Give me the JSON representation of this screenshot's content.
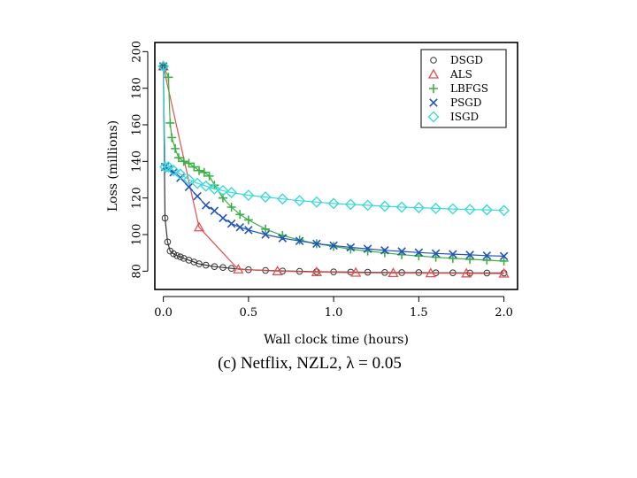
{
  "chart_data": {
    "type": "line",
    "caption": "(c) Netflix, NZL2, λ = 0.05",
    "xlabel": "Wall clock time (hours)",
    "ylabel": "Loss (millions)",
    "xlim": [
      -0.05,
      2.08
    ],
    "ylim": [
      70,
      205
    ],
    "xticks": [
      0.0,
      0.5,
      1.0,
      1.5,
      2.0
    ],
    "xtick_labels": [
      "0.0",
      "0.5",
      "1.0",
      "1.5",
      "2.0"
    ],
    "yticks": [
      80,
      100,
      120,
      140,
      160,
      180,
      200
    ],
    "ytick_labels": [
      "80",
      "100",
      "120",
      "140",
      "160",
      "180",
      "200"
    ],
    "legend_position": "top-right",
    "series": [
      {
        "name": "DSGD",
        "color": "#333333",
        "marker": "circle",
        "points": [
          [
            0.0,
            192
          ],
          [
            0.01,
            109
          ],
          [
            0.025,
            96
          ],
          [
            0.04,
            91
          ],
          [
            0.06,
            89.5
          ],
          [
            0.08,
            88.5
          ],
          [
            0.1,
            87.8
          ],
          [
            0.12,
            87
          ],
          [
            0.15,
            86
          ],
          [
            0.18,
            85
          ],
          [
            0.21,
            84
          ],
          [
            0.25,
            83.3
          ],
          [
            0.3,
            82.5
          ],
          [
            0.35,
            82
          ],
          [
            0.4,
            81.5
          ],
          [
            0.5,
            80.8
          ],
          [
            0.6,
            80.4
          ],
          [
            0.7,
            80.1
          ],
          [
            0.8,
            79.9
          ],
          [
            0.9,
            79.7
          ],
          [
            1.0,
            79.6
          ],
          [
            1.1,
            79.5
          ],
          [
            1.2,
            79.4
          ],
          [
            1.3,
            79.3
          ],
          [
            1.4,
            79.2
          ],
          [
            1.5,
            79.2
          ],
          [
            1.6,
            79.1
          ],
          [
            1.7,
            79.1
          ],
          [
            1.8,
            79.0
          ],
          [
            1.9,
            79.0
          ],
          [
            2.0,
            79.0
          ]
        ]
      },
      {
        "name": "ALS",
        "color": "#e05050",
        "marker": "triangle",
        "points": [
          [
            0.0,
            192
          ],
          [
            0.21,
            104
          ],
          [
            0.44,
            81
          ],
          [
            0.67,
            80
          ],
          [
            0.9,
            79.5
          ],
          [
            1.13,
            79.2
          ],
          [
            1.35,
            79
          ],
          [
            1.57,
            78.9
          ],
          [
            1.78,
            78.8
          ],
          [
            2.0,
            78.7
          ]
        ]
      },
      {
        "name": "LBFGS",
        "color": "#3cb044",
        "marker": "plus",
        "points": [
          [
            0.0,
            192
          ],
          [
            0.03,
            186
          ],
          [
            0.04,
            161
          ],
          [
            0.05,
            153
          ],
          [
            0.07,
            147
          ],
          [
            0.09,
            142
          ],
          [
            0.12,
            140
          ],
          [
            0.15,
            139
          ],
          [
            0.18,
            137
          ],
          [
            0.21,
            135
          ],
          [
            0.24,
            134
          ],
          [
            0.27,
            132
          ],
          [
            0.3,
            127
          ],
          [
            0.35,
            120
          ],
          [
            0.4,
            115
          ],
          [
            0.45,
            111
          ],
          [
            0.5,
            108
          ],
          [
            0.6,
            103
          ],
          [
            0.7,
            99.5
          ],
          [
            0.8,
            97
          ],
          [
            0.9,
            95
          ],
          [
            1.0,
            93.5
          ],
          [
            1.1,
            92
          ],
          [
            1.2,
            91
          ],
          [
            1.3,
            90
          ],
          [
            1.4,
            89
          ],
          [
            1.5,
            88.3
          ],
          [
            1.6,
            87.6
          ],
          [
            1.7,
            87
          ],
          [
            1.8,
            86.5
          ],
          [
            1.9,
            86
          ],
          [
            2.0,
            85.5
          ]
        ]
      },
      {
        "name": "PSGD",
        "color": "#2255bb",
        "marker": "x",
        "points": [
          [
            0.0,
            192
          ],
          [
            0.01,
            137
          ],
          [
            0.03,
            136
          ],
          [
            0.06,
            134
          ],
          [
            0.1,
            131
          ],
          [
            0.15,
            126
          ],
          [
            0.2,
            121
          ],
          [
            0.25,
            116
          ],
          [
            0.3,
            113
          ],
          [
            0.35,
            109
          ],
          [
            0.4,
            106
          ],
          [
            0.45,
            104
          ],
          [
            0.5,
            102.5
          ],
          [
            0.6,
            100
          ],
          [
            0.7,
            98
          ],
          [
            0.8,
            96.5
          ],
          [
            0.9,
            95
          ],
          [
            1.0,
            94
          ],
          [
            1.1,
            93
          ],
          [
            1.2,
            92.2
          ],
          [
            1.3,
            91.4
          ],
          [
            1.4,
            90.8
          ],
          [
            1.5,
            90.2
          ],
          [
            1.6,
            89.7
          ],
          [
            1.7,
            89.3
          ],
          [
            1.8,
            88.9
          ],
          [
            1.9,
            88.5
          ],
          [
            2.0,
            88.2
          ]
        ]
      },
      {
        "name": "ISGD",
        "color": "#3dd9d9",
        "marker": "diamond",
        "points": [
          [
            0.0,
            192
          ],
          [
            0.01,
            137
          ],
          [
            0.03,
            137
          ],
          [
            0.06,
            135
          ],
          [
            0.1,
            133
          ],
          [
            0.15,
            130
          ],
          [
            0.2,
            128
          ],
          [
            0.25,
            126.5
          ],
          [
            0.3,
            125
          ],
          [
            0.35,
            124
          ],
          [
            0.4,
            123
          ],
          [
            0.5,
            121.5
          ],
          [
            0.6,
            120.5
          ],
          [
            0.7,
            119.5
          ],
          [
            0.8,
            118.5
          ],
          [
            0.9,
            117.8
          ],
          [
            1.0,
            117
          ],
          [
            1.1,
            116.5
          ],
          [
            1.2,
            116
          ],
          [
            1.3,
            115.5
          ],
          [
            1.4,
            115
          ],
          [
            1.5,
            114.7
          ],
          [
            1.6,
            114.3
          ],
          [
            1.7,
            114
          ],
          [
            1.8,
            113.7
          ],
          [
            1.9,
            113.5
          ],
          [
            2.0,
            113.2
          ]
        ]
      }
    ]
  }
}
